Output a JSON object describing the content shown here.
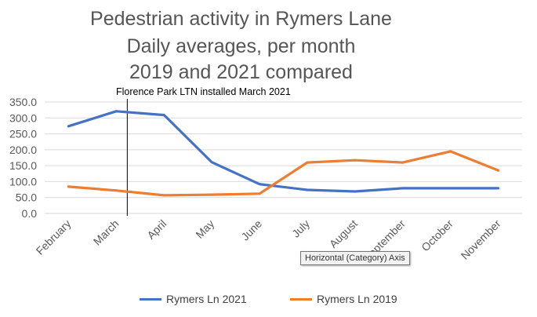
{
  "chart_data": {
    "type": "line",
    "title": [
      "Pedestrian activity in Rymers Lane",
      "Daily averages, per month",
      "2019 and 2021 compared"
    ],
    "categories": [
      "February",
      "March",
      "April",
      "May",
      "June",
      "July",
      "August",
      "September",
      "October",
      "November"
    ],
    "series": [
      {
        "name": "Rymers Ln 2021",
        "color": "#4472c4",
        "values": [
          274,
          321,
          309,
          161,
          92,
          74,
          69,
          79,
          79,
          79
        ]
      },
      {
        "name": "Rymers Ln 2019",
        "color": "#ed7d31",
        "values": [
          84,
          72,
          57,
          59,
          62,
          160,
          167,
          160,
          195,
          135
        ]
      }
    ],
    "ylim": [
      0,
      350
    ],
    "yticks": [
      "0.0",
      "50.0",
      "100.0",
      "150.0",
      "200.0",
      "250.0",
      "300.0",
      "350.0"
    ],
    "grid": true,
    "legend": "bottom",
    "annotation": {
      "text": "Florence Park LTN installed March 2021",
      "category": "March"
    }
  },
  "tooltip": "Horizontal (Category) Axis"
}
